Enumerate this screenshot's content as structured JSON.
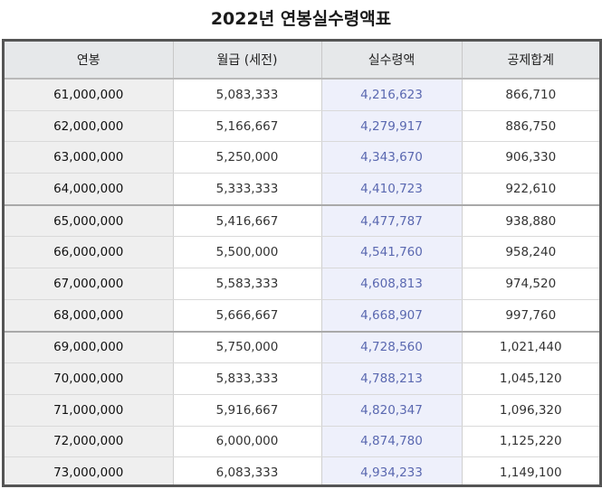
{
  "title": "2022년 연봉실수령액표",
  "headers": [
    "연봉",
    "월급 (세전)",
    "실수령액",
    "공제합계"
  ],
  "rows": [
    [
      "61,000,000",
      "5,083,333",
      "4,216,623",
      "866,710"
    ],
    [
      "62,000,000",
      "5,166,667",
      "4,279,917",
      "886,750"
    ],
    [
      "63,000,000",
      "5,250,000",
      "4,343,670",
      "906,330"
    ],
    [
      "64,000,000",
      "5,333,333",
      "4,410,723",
      "922,610"
    ],
    [
      "65,000,000",
      "5,416,667",
      "4,477,787",
      "938,880"
    ],
    [
      "66,000,000",
      "5,500,000",
      "4,541,760",
      "958,240"
    ],
    [
      "67,000,000",
      "5,583,333",
      "4,608,813",
      "974,520"
    ],
    [
      "68,000,000",
      "5,666,667",
      "4,668,907",
      "997,760"
    ],
    [
      "69,000,000",
      "5,750,000",
      "4,728,560",
      "1,021,440"
    ],
    [
      "70,000,000",
      "5,833,333",
      "4,788,213",
      "1,045,120"
    ],
    [
      "71,000,000",
      "5,916,667",
      "4,820,347",
      "1,096,320"
    ],
    [
      "72,000,000",
      "6,000,000",
      "4,874,780",
      "1,125,220"
    ],
    [
      "73,000,000",
      "6,083,333",
      "4,934,233",
      "1,149,100"
    ]
  ],
  "colors": {
    "header_bg": "#e6e8ea",
    "salary_col_bg": "#efefef",
    "net_col_bg": "#eef0fb",
    "net_col_text": "#5a68b0",
    "frame_border": "#555555"
  }
}
